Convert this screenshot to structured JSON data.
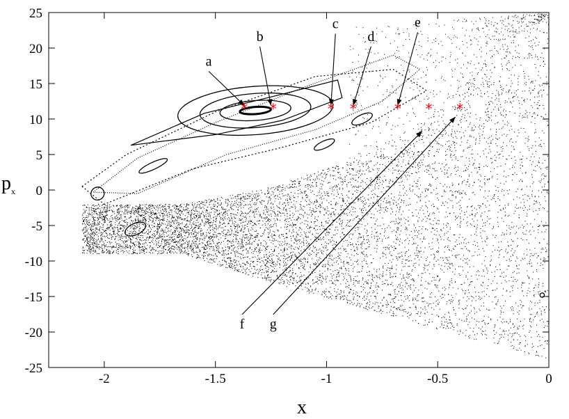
{
  "chart_data": {
    "type": "scatter",
    "title": "",
    "xlabel": "x",
    "ylabel": "p",
    "ylabel_sub": "x",
    "xlim": [
      -2.25,
      0
    ],
    "ylim": [
      -25,
      25
    ],
    "x_ticks": [
      -2,
      -1.5,
      -1,
      -0.5,
      0
    ],
    "x_tick_labels": [
      "-2",
      "-1.5",
      "-1",
      "-0.5",
      "0"
    ],
    "y_ticks": [
      -25,
      -20,
      -15,
      -10,
      -5,
      0,
      5,
      10,
      15,
      20,
      25
    ],
    "y_tick_labels": [
      "-25",
      "-20",
      "-15",
      "-10",
      "-5",
      "0",
      "5",
      "10",
      "15",
      "20",
      "25"
    ],
    "grid": false,
    "colors": {
      "orbits": "#000000",
      "markers": "#ff0000"
    },
    "marker_symbol": "*",
    "marked_points": [
      {
        "label": "a",
        "x": -1.37,
        "y": 11.4
      },
      {
        "label": "b",
        "x": -1.24,
        "y": 11.4
      },
      {
        "label": "c",
        "x": -0.98,
        "y": 11.4
      },
      {
        "label": "d",
        "x": -0.88,
        "y": 11.4
      },
      {
        "label": "e",
        "x": -0.68,
        "y": 11.4
      },
      {
        "label": "f",
        "x": -0.54,
        "y": 11.4
      },
      {
        "label": "g",
        "x": -0.4,
        "y": 11.4
      }
    ],
    "annotations": [
      {
        "text": "a",
        "text_x": -1.53,
        "text_y": 17.5,
        "target_x": -1.37,
        "target_y": 11.9
      },
      {
        "text": "b",
        "text_x": -1.3,
        "text_y": 21.0,
        "target_x": -1.25,
        "target_y": 11.9
      },
      {
        "text": "c",
        "text_x": -0.96,
        "text_y": 22.8,
        "target_x": -0.98,
        "target_y": 11.9
      },
      {
        "text": "d",
        "text_x": -0.8,
        "text_y": 21.0,
        "target_x": -0.88,
        "target_y": 11.9
      },
      {
        "text": "e",
        "text_x": -0.59,
        "text_y": 23.0,
        "target_x": -0.68,
        "target_y": 11.9
      },
      {
        "text": "f",
        "text_x": -1.38,
        "text_y": -19.5,
        "target_x": -0.57,
        "target_y": 8.3
      },
      {
        "text": "g",
        "text_x": -1.24,
        "text_y": -19.5,
        "target_x": -0.42,
        "target_y": 10.3
      }
    ],
    "chaotic_sea_region": {
      "x_min": -2.1,
      "x_max": 0,
      "upper_boundary": [
        [
          -1.65,
          -2.0
        ],
        [
          -1.3,
          0.0
        ],
        [
          -0.95,
          3.5
        ],
        [
          -0.6,
          8.0
        ],
        [
          -0.35,
          16.0
        ],
        [
          -0.1,
          23.0
        ],
        [
          0,
          24.0
        ]
      ],
      "lower_boundary": [
        [
          -1.65,
          -9.0
        ],
        [
          -1.2,
          -13.5
        ],
        [
          -0.8,
          -17.0
        ],
        [
          -0.4,
          -20.5
        ],
        [
          0,
          -24.0
        ]
      ]
    },
    "closed_orbits": [
      {
        "name": "central",
        "cx": -1.32,
        "cy": 11.2,
        "rx": [
          0.07,
          0.16,
          0.25,
          0.35
        ],
        "ry": [
          0.5,
          1.4,
          2.4,
          3.4
        ],
        "tilt": -0.075
      }
    ],
    "islands": [
      {
        "cx": -0.84,
        "cy": 10.0,
        "rx": 0.05,
        "ry": 0.6
      },
      {
        "cx": -1.01,
        "cy": 6.4,
        "rx": 0.05,
        "ry": 0.5
      },
      {
        "cx": -1.78,
        "cy": 3.4,
        "rx": 0.07,
        "ry": 0.5
      },
      {
        "cx": -2.03,
        "cy": -0.5,
        "rx": 0.03,
        "ry": 0.9
      },
      {
        "cx": -1.86,
        "cy": -5.5,
        "rx": 0.05,
        "ry": 0.8
      },
      {
        "cx": -0.03,
        "cy": -14.8,
        "rx": 0.01,
        "ry": 0.3
      }
    ]
  }
}
